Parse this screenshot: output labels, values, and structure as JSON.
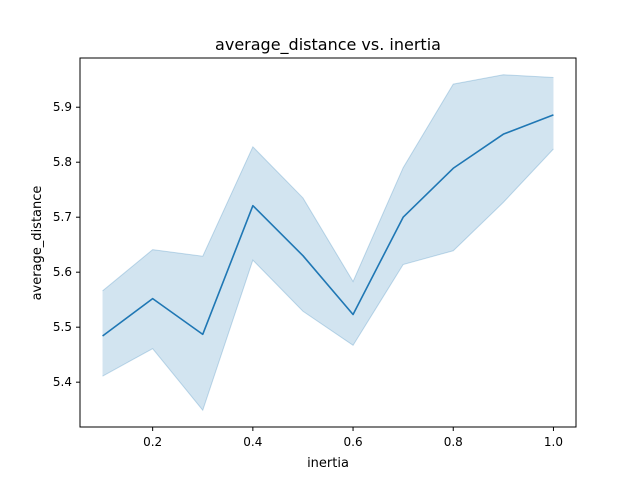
{
  "chart_data": {
    "type": "line",
    "title": "average_distance vs. inertia",
    "xlabel": "inertia",
    "ylabel": "average_distance",
    "x": [
      0.1,
      0.2,
      0.3,
      0.4,
      0.5,
      0.6,
      0.7,
      0.8,
      0.9,
      1.0
    ],
    "series": [
      {
        "values": [
          5.484,
          5.552,
          5.487,
          5.721,
          5.63,
          5.523,
          5.7,
          5.789,
          5.851,
          5.886
        ],
        "ci_lower": [
          5.411,
          5.461,
          5.349,
          5.622,
          5.529,
          5.467,
          5.614,
          5.639,
          5.727,
          5.824
        ],
        "ci_upper": [
          5.566,
          5.641,
          5.629,
          5.828,
          5.735,
          5.583,
          5.79,
          5.942,
          5.959,
          5.954
        ],
        "color": "#1f77b4",
        "band_color": "#1f77b4",
        "band_opacity": 0.2
      }
    ],
    "xlim": [
      0.055,
      1.045
    ],
    "ylim": [
      5.3185,
      5.9895
    ],
    "xticks": [
      0.2,
      0.4,
      0.6,
      0.8,
      1.0
    ],
    "xtick_labels": [
      "0.2",
      "0.4",
      "0.6",
      "0.8",
      "1.0"
    ],
    "yticks": [
      5.4,
      5.5,
      5.6,
      5.7,
      5.8,
      5.9
    ],
    "ytick_labels": [
      "5.4",
      "5.5",
      "5.6",
      "5.7",
      "5.8",
      "5.9"
    ],
    "grid": false,
    "legend": false
  }
}
